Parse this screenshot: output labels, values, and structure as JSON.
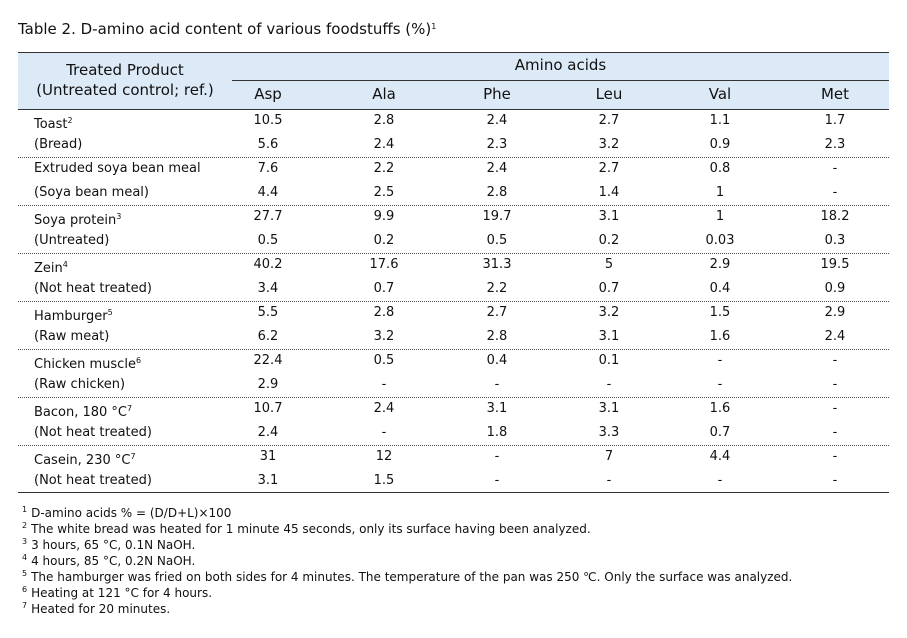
{
  "title": {
    "text": "Table 2. D-amino acid content of various foodstuffs (%)",
    "sup": "1"
  },
  "table": {
    "header": {
      "product": "Treated Product",
      "control": "(Untreated control; ref.)",
      "group": "Amino acids",
      "columns": [
        "Asp",
        "Ala",
        "Phe",
        "Leu",
        "Val",
        "Met"
      ]
    },
    "rows": [
      {
        "label": "Toast",
        "sup": "2",
        "cells": [
          "10.5",
          "2.8",
          "2.4",
          "2.7",
          "1.1",
          "1.7"
        ]
      },
      {
        "label": "(Bread)",
        "cells": [
          "5.6",
          "2.4",
          "2.3",
          "3.2",
          "0.9",
          "2.3"
        ]
      },
      {
        "label": "Extruded soya bean meal",
        "cells": [
          "7.6",
          "2.2",
          "2.4",
          "2.7",
          "0.8",
          "-"
        ]
      },
      {
        "label": "(Soya bean meal)",
        "cells": [
          "4.4",
          "2.5",
          "2.8",
          "1.4",
          "1",
          "-"
        ]
      },
      {
        "label": "Soya protein",
        "sup": "3",
        "cells": [
          "27.7",
          "9.9",
          "19.7",
          "3.1",
          "1",
          "18.2"
        ]
      },
      {
        "label": "(Untreated)",
        "cells": [
          "0.5",
          "0.2",
          "0.5",
          "0.2",
          "0.03",
          "0.3"
        ]
      },
      {
        "label": "Zein",
        "sup": "4",
        "cells": [
          "40.2",
          "17.6",
          "31.3",
          "5",
          "2.9",
          "19.5"
        ]
      },
      {
        "label": "(Not heat treated)",
        "cells": [
          "3.4",
          "0.7",
          "2.2",
          "0.7",
          "0.4",
          "0.9"
        ]
      },
      {
        "label": "Hamburger",
        "sup": "5",
        "cells": [
          "5.5",
          "2.8",
          "2.7",
          "3.2",
          "1.5",
          "2.9"
        ]
      },
      {
        "label": "(Raw meat)",
        "cells": [
          "6.2",
          "3.2",
          "2.8",
          "3.1",
          "1.6",
          "2.4"
        ]
      },
      {
        "label": "Chicken muscle",
        "sup": "6",
        "cells": [
          "22.4",
          "0.5",
          "0.4",
          "0.1",
          "-",
          "-"
        ]
      },
      {
        "label": "(Raw chicken)",
        "cells": [
          "2.9",
          "-",
          "-",
          "-",
          "-",
          "-"
        ]
      },
      {
        "label": "Bacon, 180 °C",
        "sup": "7",
        "cells": [
          "10.7",
          "2.4",
          "3.1",
          "3.1",
          "1.6",
          "-"
        ]
      },
      {
        "label": "(Not heat treated)",
        "cells": [
          "2.4",
          "-",
          "1.8",
          "3.3",
          "0.7",
          "-"
        ]
      },
      {
        "label": "Casein, 230 °C",
        "sup": "7",
        "cells": [
          "31",
          "12",
          "-",
          "7",
          "4.4",
          "-"
        ]
      },
      {
        "label": "(Not heat treated)",
        "cells": [
          "3.1",
          "1.5",
          "-",
          "-",
          "-",
          "-"
        ]
      }
    ]
  },
  "footnotes": [
    {
      "mark": "1",
      "text": "D-amino acids % = (D/D+L)×100"
    },
    {
      "mark": "2",
      "text": "The white bread was heated for 1 minute 45 seconds, only its surface having been analyzed."
    },
    {
      "mark": "3",
      "text": "3 hours, 65 °C, 0.1N NaOH."
    },
    {
      "mark": "4",
      "text": "4 hours, 85 °C, 0.2N NaOH."
    },
    {
      "mark": "5",
      "text": "The hamburger was fried on both sides for 4 minutes. The temperature of the pan was 250 ℃. Only the surface was analyzed."
    },
    {
      "mark": "6",
      "text": "Heating at 121 °C for 4 hours."
    },
    {
      "mark": "7",
      "text": "Heated for 20 minutes."
    }
  ]
}
